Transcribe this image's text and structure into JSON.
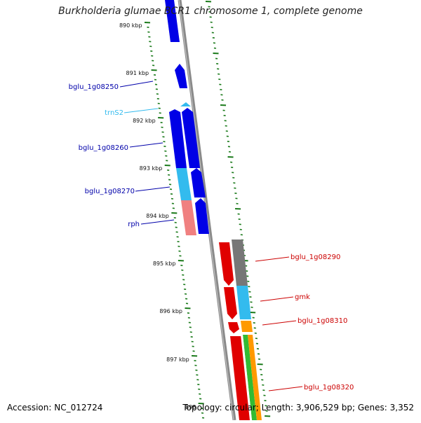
{
  "title": "Burkholderia glumae BCR1 chromosome 1, complete genome",
  "footer": {
    "accession": "Accession: NC_012724",
    "summary": "Topology: circular; Length: 3,906,529 bp; Genes: 3,352"
  },
  "colors": {
    "backbone": "#8a8a8a",
    "tick": "#1a7a1a",
    "cds_plus": "#0000e6",
    "cds_minus": "#e00000",
    "trna": "#33bbee",
    "label_plus": "#0000aa",
    "label_minus": "#cc0000",
    "label_trna": "#33bbee"
  },
  "ticks": [
    "890 kbp",
    "891 kbp",
    "892 kbp",
    "893 kbp",
    "894 kbp",
    "895 kbp",
    "896 kbp",
    "897 kbp",
    "898"
  ],
  "labels": [
    {
      "text": "bglu_1g08250",
      "kind": "plus"
    },
    {
      "text": "trnS2",
      "kind": "trna"
    },
    {
      "text": "bglu_1g08260",
      "kind": "plus"
    },
    {
      "text": "bglu_1g08270",
      "kind": "plus"
    },
    {
      "text": "rph",
      "kind": "plus"
    },
    {
      "text": "bglu_1g08290",
      "kind": "minus"
    },
    {
      "text": "gmk",
      "kind": "minus"
    },
    {
      "text": "bglu_1g08310",
      "kind": "minus"
    },
    {
      "text": "bglu_1g08320",
      "kind": "minus"
    }
  ]
}
